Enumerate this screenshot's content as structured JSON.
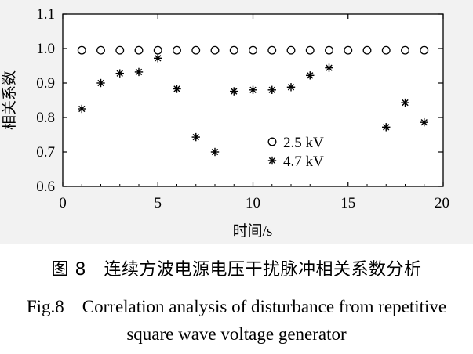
{
  "chart_data": {
    "type": "scatter",
    "xlabel": "时间/s",
    "ylabel": "相关系数",
    "xlim": [
      0,
      20
    ],
    "ylim": [
      0.6,
      1.1
    ],
    "x_ticks": [
      "0",
      "5",
      "10",
      "15",
      "20"
    ],
    "y_ticks": [
      "0.6",
      "0.7",
      "0.8",
      "0.9",
      "1.0",
      "1.1"
    ],
    "legend_position": "lower-right",
    "series": [
      {
        "name": "2.5 kV",
        "marker": "open-circle",
        "x": [
          1,
          2,
          3,
          4,
          5,
          6,
          7,
          8,
          9,
          10,
          11,
          12,
          13,
          14,
          15,
          16,
          17,
          18,
          19
        ],
        "y": [
          0.995,
          0.995,
          0.995,
          0.995,
          0.995,
          0.995,
          0.995,
          0.995,
          0.995,
          0.995,
          0.995,
          0.995,
          0.995,
          0.995,
          0.995,
          0.995,
          0.995,
          0.995,
          0.995
        ]
      },
      {
        "name": "4.7 kV",
        "marker": "asterisk",
        "x": [
          1,
          2,
          3,
          4,
          5,
          6,
          7,
          8,
          9,
          10,
          11,
          12,
          13,
          14,
          17,
          18,
          19
        ],
        "y": [
          0.825,
          0.9,
          0.928,
          0.932,
          0.972,
          0.883,
          0.743,
          0.7,
          0.876,
          0.88,
          0.88,
          0.888,
          0.922,
          0.944,
          0.772,
          0.843,
          0.786
        ]
      }
    ]
  },
  "caption": {
    "cn": "图 8　连续方波电源电压干扰脉冲相关系数分析",
    "en_line1": "Fig.8　Correlation analysis of disturbance from repetitive",
    "en_line2": "square wave voltage generator"
  }
}
